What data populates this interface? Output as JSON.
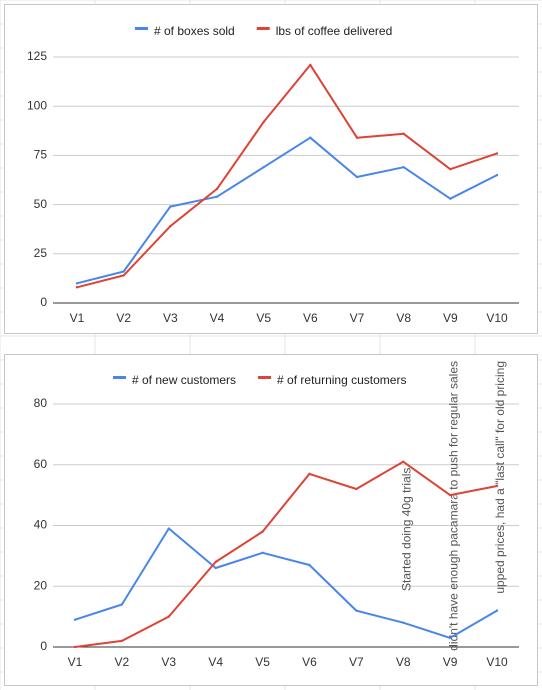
{
  "chart_data": [
    {
      "type": "line",
      "title": "",
      "xlabel": "",
      "ylabel": "",
      "categories": [
        "V1",
        "V2",
        "V3",
        "V4",
        "V5",
        "V6",
        "V7",
        "V8",
        "V9",
        "V10"
      ],
      "ylim": [
        0,
        125
      ],
      "yticks": [
        0,
        25,
        50,
        75,
        100,
        125
      ],
      "grid": true,
      "legend": "top-center",
      "series": [
        {
          "name": "# of boxes sold",
          "color": "#4a86e8",
          "values": [
            10,
            16,
            49,
            54,
            69,
            84,
            64,
            69,
            53,
            65
          ]
        },
        {
          "name": "lbs of coffee delivered",
          "color": "#db4437",
          "values": [
            8,
            14,
            39,
            58,
            92,
            121,
            84,
            86,
            68,
            76
          ]
        }
      ]
    },
    {
      "type": "line",
      "title": "",
      "xlabel": "",
      "ylabel": "",
      "categories": [
        "V1",
        "V2",
        "V3",
        "V4",
        "V5",
        "V6",
        "V7",
        "V8",
        "V9",
        "V10"
      ],
      "ylim": [
        0,
        80
      ],
      "yticks": [
        0,
        20,
        40,
        60,
        80
      ],
      "grid": true,
      "legend": "top-center",
      "series": [
        {
          "name": "# of new customers",
          "color": "#4a86e8",
          "values": [
            9,
            14,
            39,
            26,
            31,
            27,
            12,
            8,
            3,
            12
          ]
        },
        {
          "name": "# of returning customers",
          "color": "#db4437",
          "values": [
            0,
            2,
            10,
            28,
            38,
            57,
            52,
            61,
            50,
            53
          ]
        }
      ],
      "annotations": [
        {
          "category": "V8",
          "text": "Started doing 40g trials"
        },
        {
          "category": "V9",
          "text": "didn't have enough pacamara to push for regular sales"
        },
        {
          "category": "V10",
          "text": "upped prices, had a \"last call\" for old pricing"
        }
      ]
    }
  ]
}
